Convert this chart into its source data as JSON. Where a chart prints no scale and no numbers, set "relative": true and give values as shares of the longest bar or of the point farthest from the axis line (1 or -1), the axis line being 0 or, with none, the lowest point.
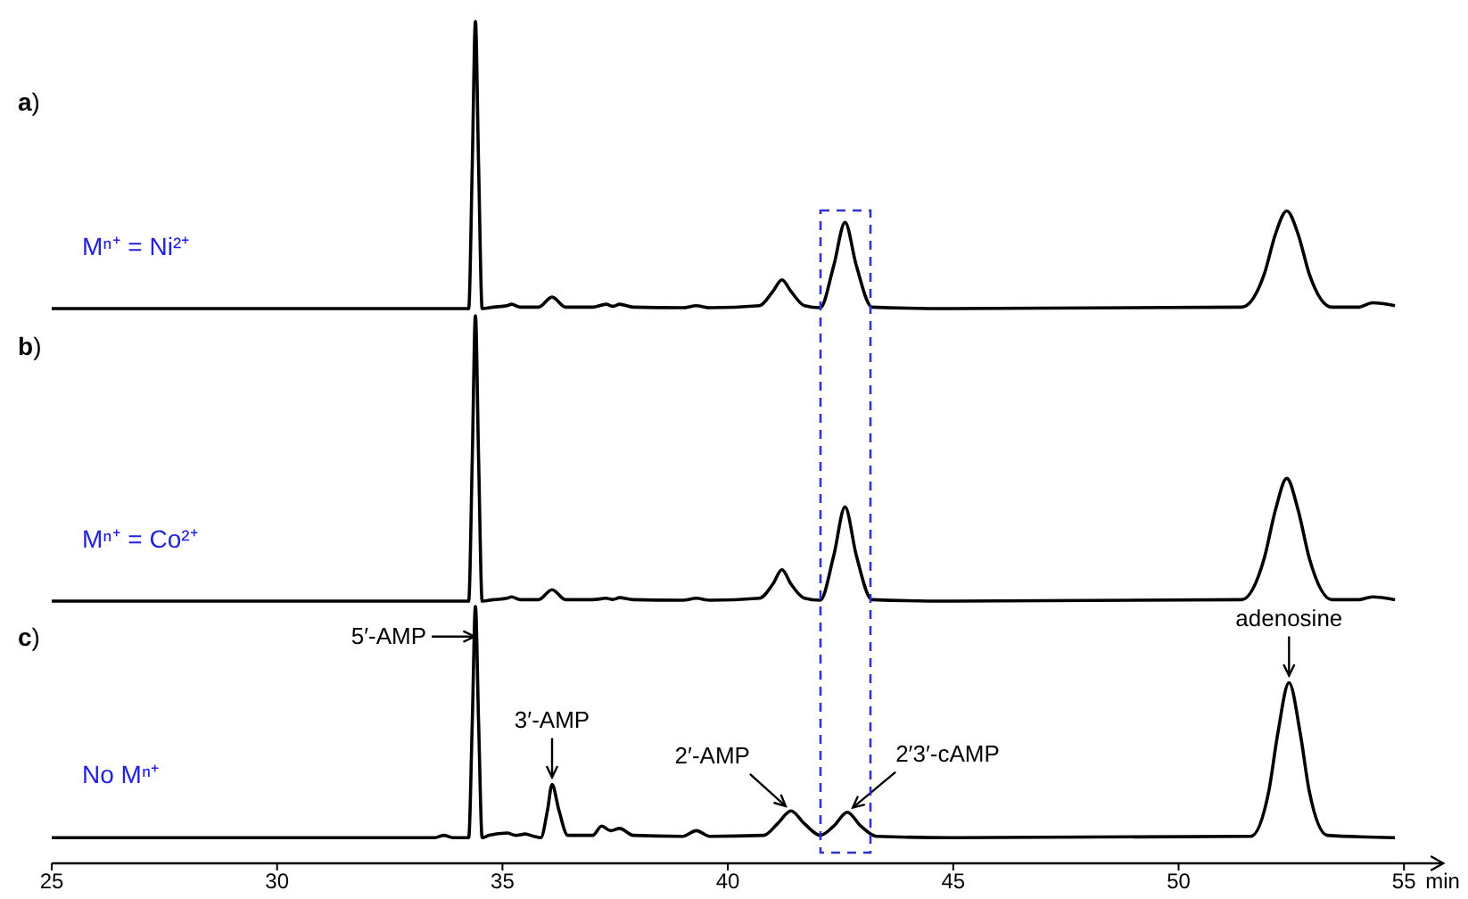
{
  "chart_data": [
    {
      "type": "line",
      "title": "a)",
      "relative": true,
      "xlim": [
        25,
        55
      ],
      "tick_labels": false,
      "annotations": [
        "Mⁿ⁺ = Ni²⁺"
      ],
      "series": [
        {
          "color": "#000000",
          "x": [
            25,
            33.9,
            34.25,
            34.33,
            34.4,
            34.47,
            34.55,
            34.8,
            35.1,
            35.2,
            35.4,
            35.8,
            36.1,
            36.4,
            37.0,
            37.3,
            37.45,
            37.6,
            37.9,
            39.0,
            39.3,
            39.6,
            40.7,
            41.0,
            41.2,
            41.4,
            41.7,
            42.05,
            42.35,
            42.6,
            42.85,
            43.2,
            45,
            51.4,
            51.9,
            52.15,
            52.4,
            52.65,
            52.9,
            53.4,
            54.0,
            54.3,
            54.8
          ],
          "values": [
            0,
            0,
            0,
            0.5,
            1,
            0.5,
            0,
            0.005,
            0.01,
            0.015,
            0.005,
            0.005,
            0.04,
            0.005,
            0.005,
            0.015,
            0.008,
            0.015,
            0.005,
            0.003,
            0.01,
            0.003,
            0.01,
            0.06,
            0.1,
            0.06,
            0.01,
            0.003,
            0.15,
            0.3,
            0.15,
            0.005,
            0,
            0.005,
            0.12,
            0.26,
            0.34,
            0.26,
            0.12,
            0.005,
            0.005,
            0.02,
            0.01
          ]
        }
      ]
    },
    {
      "type": "line",
      "title": "b)",
      "relative": true,
      "xlim": [
        25,
        55
      ],
      "tick_labels": false,
      "annotations": [
        "Mⁿ⁺ = Co²⁺"
      ],
      "series": [
        {
          "color": "#000000",
          "x": [
            25,
            33.9,
            34.25,
            34.33,
            34.4,
            34.47,
            34.55,
            34.8,
            35.1,
            35.2,
            35.4,
            35.8,
            36.1,
            36.4,
            37.0,
            37.3,
            37.45,
            37.6,
            37.9,
            39.0,
            39.3,
            39.6,
            40.7,
            41.0,
            41.2,
            41.4,
            41.7,
            42.05,
            42.35,
            42.6,
            42.85,
            43.2,
            45,
            51.4,
            51.9,
            52.15,
            52.4,
            52.65,
            52.9,
            53.4,
            54.0,
            54.3,
            54.8
          ],
          "values": [
            0,
            0,
            0,
            0.5,
            1,
            0.5,
            0,
            0.005,
            0.01,
            0.015,
            0.005,
            0.005,
            0.04,
            0.005,
            0.005,
            0.01,
            0.006,
            0.012,
            0.005,
            0.003,
            0.01,
            0.003,
            0.01,
            0.06,
            0.11,
            0.06,
            0.01,
            0.003,
            0.16,
            0.33,
            0.16,
            0.005,
            0,
            0.005,
            0.15,
            0.32,
            0.43,
            0.32,
            0.15,
            0.005,
            0.005,
            0.015,
            0.005
          ]
        }
      ]
    },
    {
      "type": "line",
      "title": "c)",
      "relative": true,
      "xlim": [
        25,
        55
      ],
      "xticks": [
        25,
        30,
        35,
        40,
        45,
        50,
        55
      ],
      "xlabel": "min",
      "tick_labels": "x",
      "annotations": [
        "No Mⁿ⁺",
        {
          "text": "5′-AMP",
          "x": 34.38,
          "y": 0.883
        },
        {
          "text": "3′-AMP",
          "x": 36.1,
          "y": 0.307
        },
        {
          "text": "2′-AMP",
          "x": 41.4,
          "y": 0.204
        },
        {
          "text": "2′3′-cAMP",
          "x": 42.65,
          "y": 0.199
        },
        {
          "text": "adenosine",
          "x": 52.45,
          "y": 0.703
        }
      ],
      "series": [
        {
          "color": "#000000",
          "x": [
            25,
            33.5,
            33.7,
            33.9,
            34.25,
            34.33,
            34.4,
            34.47,
            34.55,
            34.7,
            35.1,
            35.3,
            35.5,
            35.7,
            35.85,
            36.0,
            36.1,
            36.25,
            36.45,
            37.0,
            37.2,
            37.4,
            37.6,
            37.9,
            39.0,
            39.3,
            39.6,
            40.8,
            41.1,
            41.4,
            41.7,
            42.05,
            42.35,
            42.65,
            42.95,
            43.3,
            45,
            51.6,
            52.0,
            52.2,
            52.45,
            52.7,
            52.9,
            53.3,
            54.8
          ],
          "values": [
            0.1,
            0.1,
            0.109,
            0.1,
            0.1,
            0.55,
            1,
            0.55,
            0.1,
            0.109,
            0.118,
            0.109,
            0.114,
            0.105,
            0.1,
            0.208,
            0.307,
            0.208,
            0.109,
            0.109,
            0.145,
            0.127,
            0.136,
            0.109,
            0.105,
            0.127,
            0.105,
            0.109,
            0.154,
            0.204,
            0.154,
            0.109,
            0.145,
            0.199,
            0.145,
            0.105,
            0.1,
            0.105,
            0.28,
            0.505,
            0.703,
            0.505,
            0.28,
            0.109,
            0.1
          ]
        }
      ]
    }
  ]
}
